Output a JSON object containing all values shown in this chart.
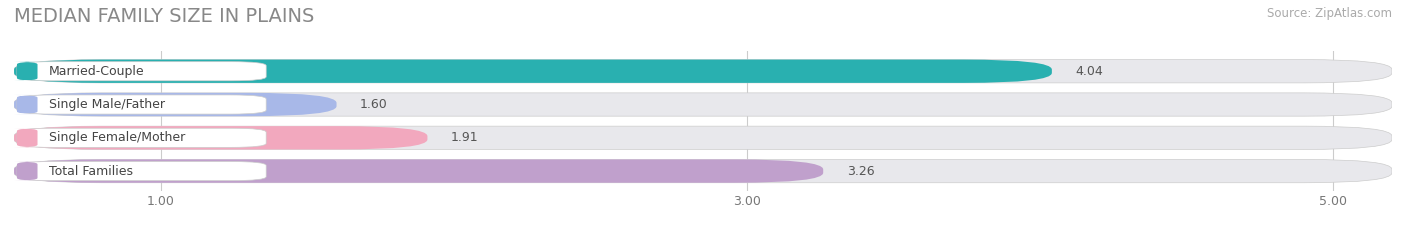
{
  "title": "MEDIAN FAMILY SIZE IN PLAINS",
  "source": "Source: ZipAtlas.com",
  "categories": [
    "Married-Couple",
    "Single Male/Father",
    "Single Female/Mother",
    "Total Families"
  ],
  "values": [
    4.04,
    1.6,
    1.91,
    3.26
  ],
  "bar_colors": [
    "#29b0b0",
    "#a8b8e8",
    "#f2a8be",
    "#c0a0cc"
  ],
  "label_tab_colors": [
    "#29b0b0",
    "#a8b8e8",
    "#f2a8be",
    "#c0a0cc"
  ],
  "value_labels": [
    "4.04",
    "1.60",
    "1.91",
    "3.26"
  ],
  "xlim": [
    0.5,
    5.2
  ],
  "data_min": 1.0,
  "xticks": [
    1.0,
    3.0,
    5.0
  ],
  "xtick_labels": [
    "1.00",
    "3.00",
    "5.00"
  ],
  "background_color": "#ffffff",
  "bar_bg_color": "#e8e8ec",
  "title_fontsize": 14,
  "label_fontsize": 9,
  "value_fontsize": 9,
  "source_fontsize": 8.5,
  "bar_height": 0.7,
  "figsize": [
    14.06,
    2.33
  ],
  "dpi": 100
}
